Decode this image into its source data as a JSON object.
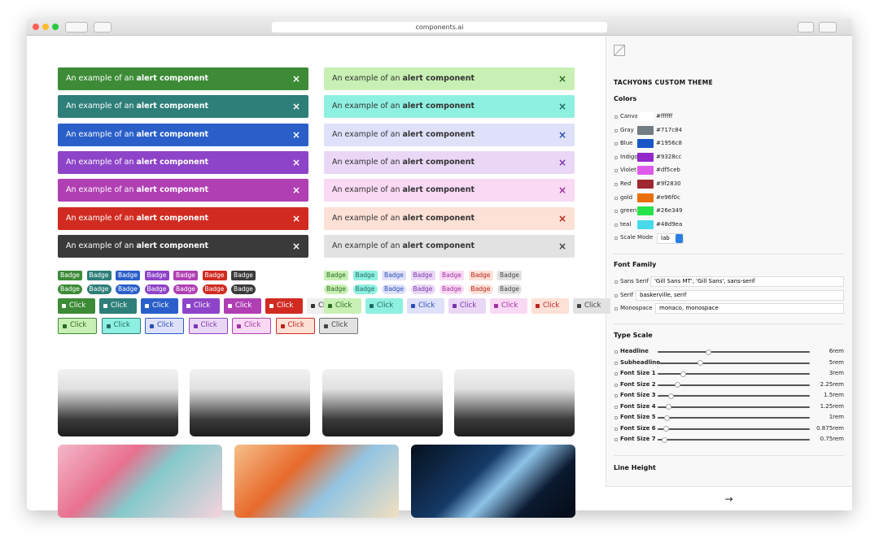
{
  "browser": {
    "url": "components.ai"
  },
  "alert": {
    "prefix": "An example of an",
    "emphasis": "alert component",
    "close": "×"
  },
  "badge": "Badge",
  "button": "Click",
  "panel": {
    "title": "TACHYONS CUSTOM THEME",
    "colors": {
      "heading": "Colors",
      "items": [
        {
          "name": "Canvas",
          "hex": "#ffffff"
        },
        {
          "name": "Gray",
          "hex": "#717c84"
        },
        {
          "name": "Blue",
          "hex": "#1956c8"
        },
        {
          "name": "Indigo",
          "hex": "#9328cc"
        },
        {
          "name": "Violet",
          "hex": "#df5ceb"
        },
        {
          "name": "Red",
          "hex": "#9f2830"
        },
        {
          "name": "gold",
          "hex": "#e96f0c"
        },
        {
          "name": "green",
          "hex": "#26e349"
        },
        {
          "name": "teal",
          "hex": "#48d9ea"
        }
      ]
    },
    "scale_mode": {
      "label": "Scale Mode",
      "value": "lab"
    },
    "font_family": {
      "heading": "Font Family",
      "items": [
        {
          "name": "Sans Serif",
          "value": "'Gill Sans MT', 'Gill Sans', sans-serif"
        },
        {
          "name": "Serif",
          "value": "baskerville, serif"
        },
        {
          "name": "Monospace",
          "value": "monaco, monospace"
        }
      ]
    },
    "type_scale": {
      "heading": "Type Scale",
      "items": [
        {
          "name": "Headline",
          "value": 6,
          "label": "6rem"
        },
        {
          "name": "Subheadline",
          "value": 5,
          "label": "5rem"
        },
        {
          "name": "Font Size 1",
          "value": 3,
          "label": "3rem"
        },
        {
          "name": "Font Size 2",
          "value": 2.25,
          "label": "2.25rem"
        },
        {
          "name": "Font Size 3",
          "value": 1.5,
          "label": "1.5rem"
        },
        {
          "name": "Font Size 4",
          "value": 1.25,
          "label": "1.25rem"
        },
        {
          "name": "Font Size 5",
          "value": 1,
          "label": "1rem"
        },
        {
          "name": "Font Size 6",
          "value": 0.875,
          "label": "0.875rem"
        },
        {
          "name": "Font Size 7",
          "value": 0.75,
          "label": "0.75rem"
        }
      ]
    },
    "line_height": {
      "heading": "Line Height"
    },
    "next": "→"
  }
}
